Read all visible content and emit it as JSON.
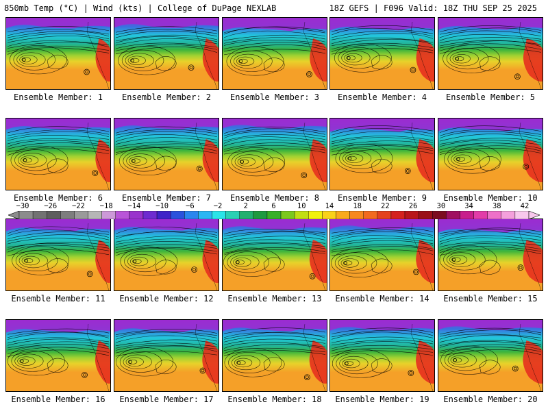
{
  "header": {
    "left": "850mb Temp (°C) | Wind (kts) | College of DuPage NEXLAB",
    "right": "18Z GEFS | F096 Valid: 18Z THU SEP 25 2025"
  },
  "colorbar": {
    "ticks": [
      "−30",
      "−26",
      "−22",
      "−18",
      "−14",
      "−10",
      "−6",
      "−2",
      "2",
      "6",
      "10",
      "14",
      "18",
      "22",
      "26",
      "30",
      "34",
      "38",
      "42"
    ],
    "colors": [
      "#8c8c8c",
      "#727272",
      "#5e5e5e",
      "#7e7e7e",
      "#9a9a9a",
      "#b6b6b6",
      "#cc99d8",
      "#b955d8",
      "#9933cc",
      "#6e2bd0",
      "#3f23c8",
      "#2a52dc",
      "#2a86ee",
      "#2ab6f4",
      "#2ae4e8",
      "#2ad0b4",
      "#22b070",
      "#1e9a40",
      "#38b028",
      "#7cc81e",
      "#c2de14",
      "#f2f20e",
      "#fad21a",
      "#f9aa1c",
      "#f78820",
      "#f26a20",
      "#e4421e",
      "#d4221e",
      "#b8161a",
      "#9a1018",
      "#7c0c20",
      "#a01060",
      "#c81e8c",
      "#e23ca8",
      "#ee70c8",
      "#f4a0dc",
      "#f8c8ec"
    ]
  },
  "map_colors": {
    "top": "#9b2cd0",
    "blue": "#3a6fe0",
    "cyan": "#22c8dc",
    "teal": "#22b496",
    "green": "#3cb43c",
    "lime": "#a0d232",
    "yellow": "#e8d22a",
    "orange": "#f5a028",
    "hot": "#e6321e"
  },
  "members": [
    {
      "label": "Ensemble Member: 1"
    },
    {
      "label": "Ensemble Member: 2"
    },
    {
      "label": "Ensemble Member: 3"
    },
    {
      "label": "Ensemble Member: 4"
    },
    {
      "label": "Ensemble Member: 5"
    },
    {
      "label": "Ensemble Member: 6"
    },
    {
      "label": "Ensemble Member: 7"
    },
    {
      "label": "Ensemble Member: 8"
    },
    {
      "label": "Ensemble Member: 9"
    },
    {
      "label": "Ensemble Member: 10"
    },
    {
      "label": "Ensemble Member: 11"
    },
    {
      "label": "Ensemble Member: 12"
    },
    {
      "label": "Ensemble Member: 13"
    },
    {
      "label": "Ensemble Member: 14"
    },
    {
      "label": "Ensemble Member: 15"
    },
    {
      "label": "Ensemble Member: 16"
    },
    {
      "label": "Ensemble Member: 17"
    },
    {
      "label": "Ensemble Member: 18"
    },
    {
      "label": "Ensemble Member: 19"
    },
    {
      "label": "Ensemble Member: 20"
    }
  ]
}
